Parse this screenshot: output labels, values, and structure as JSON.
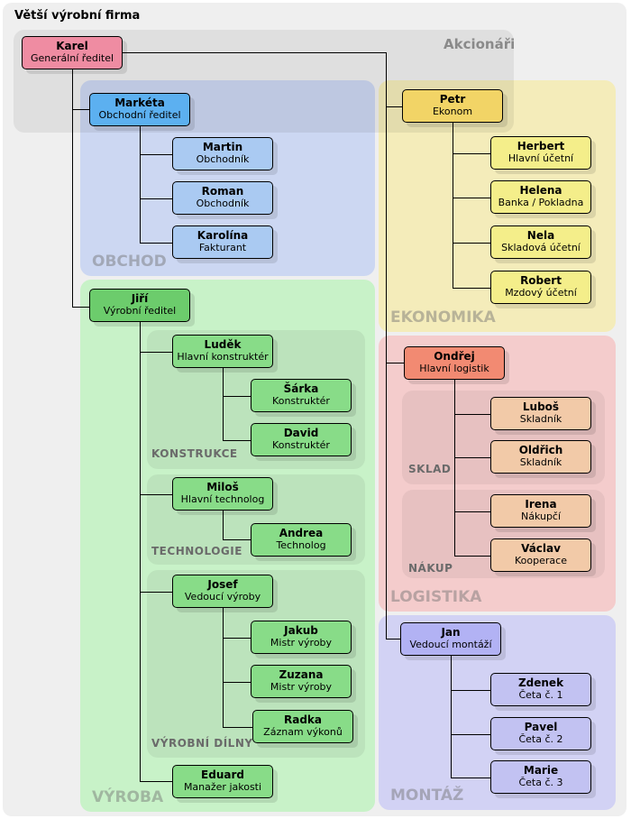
{
  "title": "Větší výrobní firma",
  "groups": {
    "akcionari": "Akcionáři",
    "obchod": "OBCHOD",
    "ekonomika": "EKONOMIKA",
    "vyroba": "VÝROBA",
    "konstrukce": "KONSTRUKCE",
    "technologie": "TECHNOLOGIE",
    "dilny": "VÝROBNÍ DÍLNY",
    "logistika": "LOGISTIKA",
    "sklad": "SKLAD",
    "nakup": "NÁKUP",
    "montaz": "MONTÁŽ"
  },
  "colors": {
    "ceo": "#ef8ca2",
    "obchod_head": "#5cb0f0",
    "obchod": "#aacaf2",
    "eko_head": "#f2d466",
    "eko": "#f4ee8a",
    "vyr_head": "#6ccc6c",
    "vyr": "#88dc88",
    "log_head": "#f28a72",
    "log": "#f2caa8",
    "mon_head": "#b2b2f4",
    "mon": "#c2c2f2"
  },
  "nodes": [
    {
      "id": "karel",
      "name": "Karel",
      "role": "Generální ředitel",
      "color": "ceo"
    },
    {
      "id": "marketa",
      "name": "Markéta",
      "role": "Obchodní ředitel",
      "color": "obchod_head"
    },
    {
      "id": "martin",
      "name": "Martin",
      "role": "Obchodník",
      "color": "obchod"
    },
    {
      "id": "roman",
      "name": "Roman",
      "role": "Obchodník",
      "color": "obchod"
    },
    {
      "id": "karolina",
      "name": "Karolína",
      "role": "Fakturant",
      "color": "obchod"
    },
    {
      "id": "petr",
      "name": "Petr",
      "role": "Ekonom",
      "color": "eko_head"
    },
    {
      "id": "herbert",
      "name": "Herbert",
      "role": "Hlavní účetní",
      "color": "eko"
    },
    {
      "id": "helena",
      "name": "Helena",
      "role": "Banka / Pokladna",
      "color": "eko"
    },
    {
      "id": "nela",
      "name": "Nela",
      "role": "Skladová účetní",
      "color": "eko"
    },
    {
      "id": "robert",
      "name": "Robert",
      "role": "Mzdový účetní",
      "color": "eko"
    },
    {
      "id": "jiri",
      "name": "Jiří",
      "role": "Výrobní ředitel",
      "color": "vyr_head"
    },
    {
      "id": "ludek",
      "name": "Luděk",
      "role": "Hlavní konstruktér",
      "color": "vyr"
    },
    {
      "id": "sarka",
      "name": "Šárka",
      "role": "Konstruktér",
      "color": "vyr"
    },
    {
      "id": "david",
      "name": "David",
      "role": "Konstruktér",
      "color": "vyr"
    },
    {
      "id": "milos",
      "name": "Miloš",
      "role": "Hlavní technolog",
      "color": "vyr"
    },
    {
      "id": "andrea",
      "name": "Andrea",
      "role": "Technolog",
      "color": "vyr"
    },
    {
      "id": "josef",
      "name": "Josef",
      "role": "Vedoucí výroby",
      "color": "vyr"
    },
    {
      "id": "jakub",
      "name": "Jakub",
      "role": "Mistr výroby",
      "color": "vyr"
    },
    {
      "id": "zuzana",
      "name": "Zuzana",
      "role": "Mistr výroby",
      "color": "vyr"
    },
    {
      "id": "radka",
      "name": "Radka",
      "role": "Záznam výkonů",
      "color": "vyr"
    },
    {
      "id": "eduard",
      "name": "Eduard",
      "role": "Manažer jakosti",
      "color": "vyr"
    },
    {
      "id": "ondrej",
      "name": "Ondřej",
      "role": "Hlavní logistik",
      "color": "log_head"
    },
    {
      "id": "lubos",
      "name": "Luboš",
      "role": "Skladník",
      "color": "log"
    },
    {
      "id": "oldrich",
      "name": "Oldřich",
      "role": "Skladník",
      "color": "log"
    },
    {
      "id": "irena",
      "name": "Irena",
      "role": "Nákupčí",
      "color": "log"
    },
    {
      "id": "vaclav",
      "name": "Václav",
      "role": "Kooperace",
      "color": "log"
    },
    {
      "id": "jan",
      "name": "Jan",
      "role": "Vedoucí montáží",
      "color": "mon_head"
    },
    {
      "id": "zdenek",
      "name": "Zdenek",
      "role": "Četa č. 1",
      "color": "mon"
    },
    {
      "id": "pavel",
      "name": "Pavel",
      "role": "Četa č. 2",
      "color": "mon"
    },
    {
      "id": "marie",
      "name": "Marie",
      "role": "Četa č. 3",
      "color": "mon"
    }
  ]
}
